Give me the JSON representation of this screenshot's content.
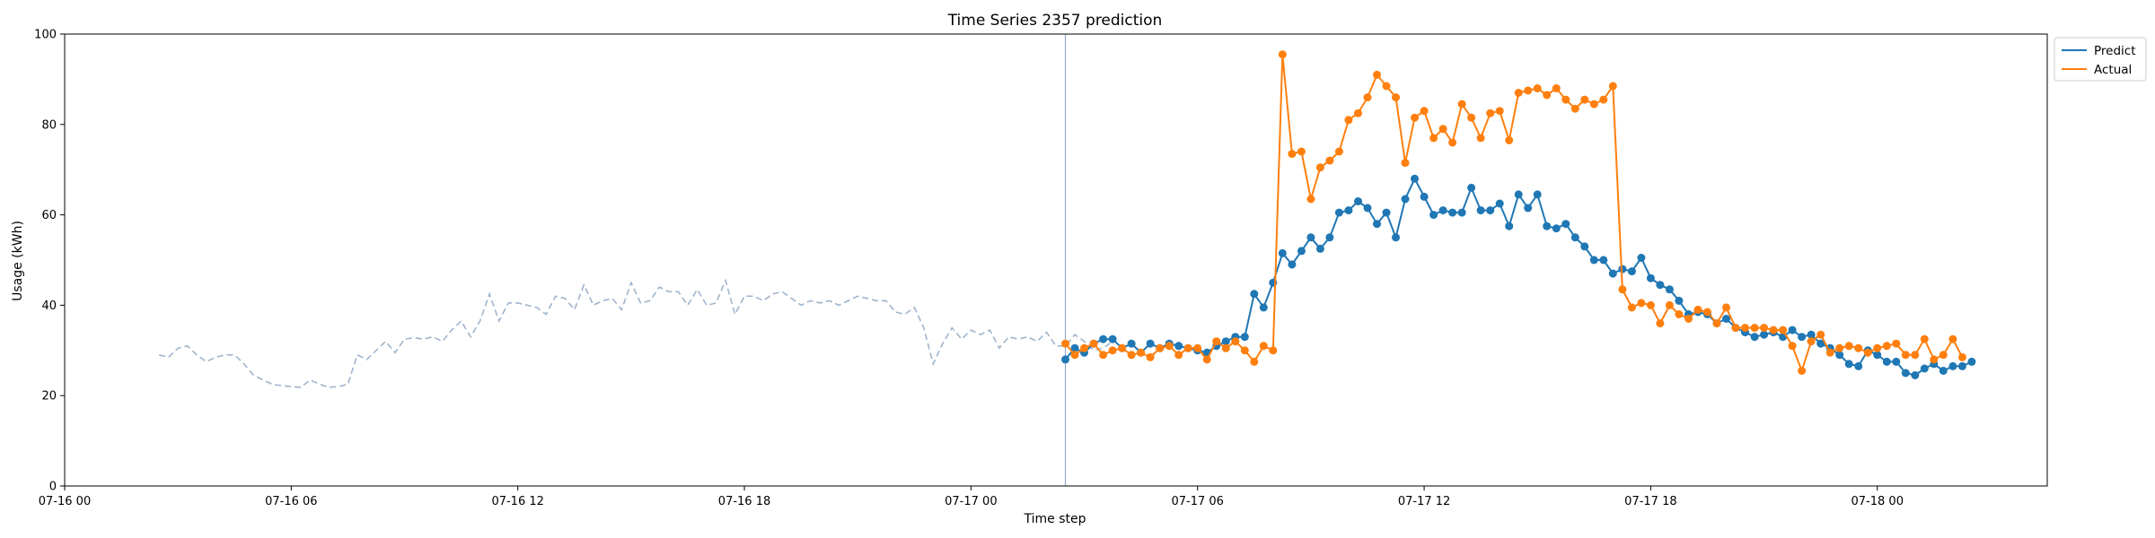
{
  "chart_data": {
    "type": "line",
    "title": "Time Series 2357 prediction",
    "xlabel": "Time step",
    "ylabel": "Usage (kWh)",
    "ylim": [
      0,
      100
    ],
    "yticks": [
      0,
      20,
      40,
      60,
      80,
      100
    ],
    "xlim": [
      "07-16 00:00",
      "07-18 04:30"
    ],
    "xticks": [
      "07-16 00",
      "07-16 06",
      "07-16 12",
      "07-16 18",
      "07-17 00",
      "07-17 06",
      "07-17 12",
      "07-17 18",
      "07-18 00"
    ],
    "grid": false,
    "legend": "outside-top-right",
    "forecast_start": "07-17 02:30",
    "step_minutes": 15,
    "colors": {
      "predict": "#1f77b4",
      "actual": "#ff7f0e",
      "history": "#a0b4cc",
      "forecast_line": "#8fa8d6"
    },
    "series": [
      {
        "name": "",
        "style": "dashed",
        "start": "07-16 02:30",
        "values": [
          29,
          28.5,
          30.5,
          31,
          29,
          27.5,
          28.5,
          29,
          29,
          27,
          24.5,
          23.5,
          22.5,
          22.2,
          22,
          21.8,
          23.5,
          22.5,
          21.8,
          22,
          22.5,
          29,
          28,
          30,
          32,
          29.5,
          32.5,
          32.8,
          32.5,
          33,
          32,
          34.5,
          36.5,
          33,
          36.5,
          42.5,
          36.5,
          40.5,
          40.5,
          40,
          39.5,
          38,
          42,
          41.5,
          39,
          44.5,
          40,
          41,
          41.5,
          39,
          45,
          40.5,
          41,
          44,
          43,
          43,
          40,
          43.5,
          40,
          40.5,
          45.5,
          38,
          42,
          42,
          41,
          42.5,
          43,
          41.5,
          40,
          41,
          40.5,
          41,
          40,
          41,
          42,
          41.5,
          41,
          41,
          38.5,
          38,
          39.5,
          35,
          27,
          31.5,
          35,
          32.5,
          34.5,
          33.5,
          34.5,
          30.5,
          33,
          32.5,
          33,
          32,
          34,
          31,
          31,
          33.5,
          32,
          30,
          30.5,
          32
        ]
      },
      {
        "name": "Predict",
        "start": "07-17 02:30",
        "values": [
          28,
          30.5,
          29.5,
          31.5,
          32.5,
          32.5,
          30.5,
          31.5,
          29.5,
          31.5,
          30.5,
          31.5,
          31,
          30.5,
          30,
          29.5,
          31,
          32,
          33,
          33,
          42.5,
          39.5,
          45,
          51.5,
          49,
          52,
          55,
          52.5,
          55,
          60.5,
          61,
          63,
          61.5,
          58,
          60.5,
          55,
          63.5,
          68,
          64,
          60,
          61,
          60.5,
          60.5,
          66,
          61,
          61,
          62.5,
          57.5,
          64.5,
          61.5,
          64.5,
          57.5,
          57,
          58,
          55,
          53,
          50,
          50,
          47,
          48,
          47.5,
          50.5,
          46,
          44.5,
          43.5,
          41,
          38,
          38.5,
          38,
          36,
          37,
          35,
          34,
          33,
          33.5,
          34,
          33,
          34.5,
          33,
          33.5,
          31.5,
          30.5,
          29,
          27,
          26.5,
          30,
          29,
          27.5,
          27.5,
          25,
          24.5,
          26,
          27,
          25.5,
          26.5,
          26.5,
          27.5
        ]
      },
      {
        "name": "Actual",
        "start": "07-17 02:30",
        "values": [
          31.5,
          29,
          30.5,
          31.5,
          29,
          30,
          30.5,
          29,
          29.5,
          28.5,
          30.5,
          31,
          29,
          30.5,
          30.5,
          28,
          32,
          30.5,
          32,
          30,
          27.5,
          31,
          30,
          95.5,
          73.5,
          74,
          63.5,
          70.5,
          72,
          74,
          81,
          82.5,
          86,
          91,
          88.5,
          86,
          71.5,
          81.5,
          83,
          77,
          79,
          76,
          84.5,
          81.5,
          77,
          82.5,
          83,
          76.5,
          87,
          87.5,
          88,
          86.5,
          88,
          85.5,
          83.5,
          85.5,
          84.5,
          85.5,
          88.5,
          43.5,
          39.5,
          40.5,
          40,
          36,
          40,
          38,
          37,
          39,
          38.5,
          36,
          39.5,
          35,
          35,
          35,
          35,
          34.5,
          34.5,
          31,
          25.5,
          32,
          33.5,
          29.5,
          30.5,
          31,
          30.5,
          29.5,
          30.5,
          31,
          31.5,
          29,
          29,
          32.5,
          28,
          29,
          32.5,
          28.5
        ]
      }
    ]
  }
}
